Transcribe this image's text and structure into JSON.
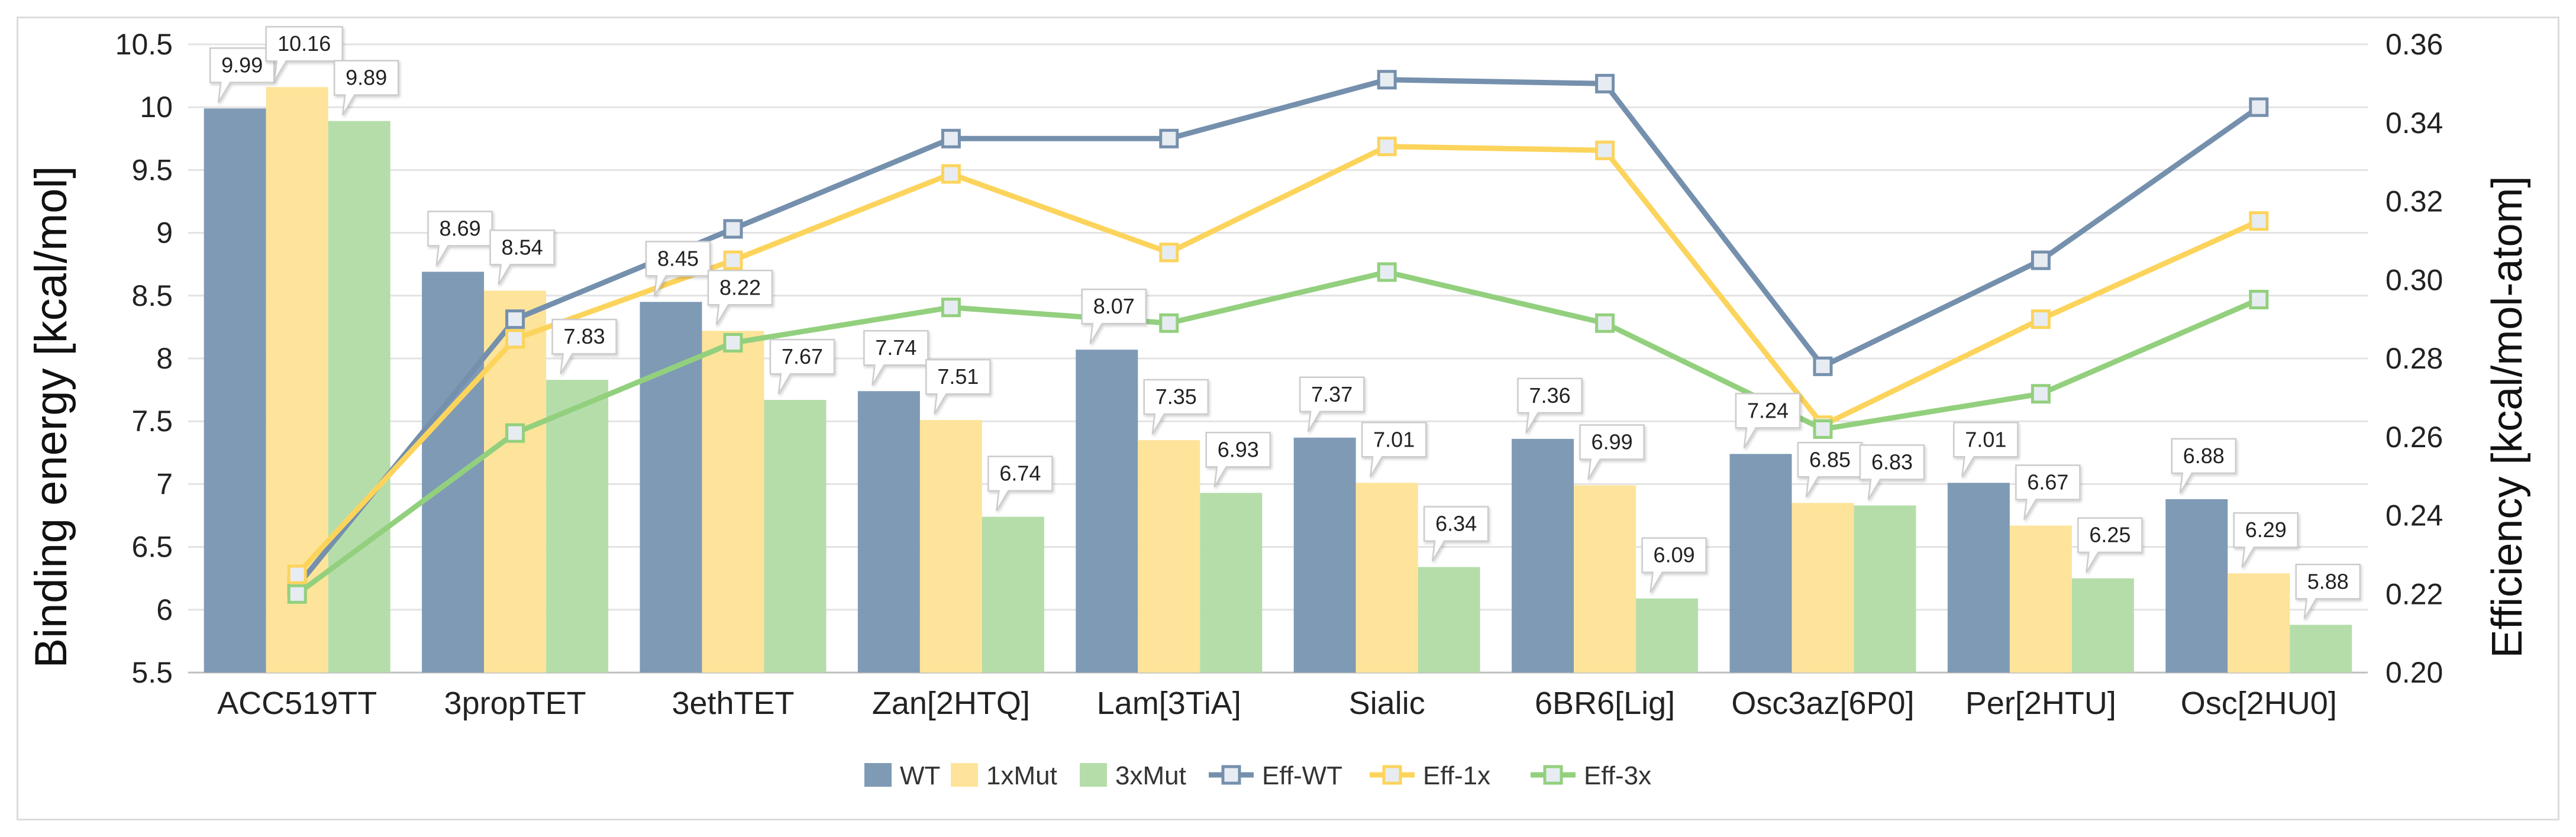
{
  "chart_data": {
    "type": "bar",
    "title": "",
    "categories": [
      "ACC519TT",
      "3propTET",
      "3ethTET",
      "Zan[2HTQ]",
      "Lam[3TiA]",
      "Sialic",
      "6BR6[Lig]",
      "Osc3az[6P0]",
      "Per[2HTU]",
      "Osc[2HU0]"
    ],
    "ylabel": "Binding energy [kcal/mol]",
    "y2label": "Efficiency [kcal/mol-atom]",
    "ylim": [
      5.5,
      10.5
    ],
    "y2lim": [
      0.2,
      0.36
    ],
    "yticks": [
      "5.5",
      "6",
      "6.5",
      "7",
      "7.5",
      "8",
      "8.5",
      "9",
      "9.5",
      "10",
      "10.5"
    ],
    "y2ticks": [
      "0.20",
      "0.22",
      "0.24",
      "0.26",
      "0.28",
      "0.30",
      "0.32",
      "0.34",
      "0.36"
    ],
    "grid": true,
    "legend_position": "bottom",
    "bar_series": [
      {
        "name": "WT",
        "color": "#7f9ab5",
        "values": [
          9.99,
          8.69,
          8.45,
          7.74,
          8.07,
          7.37,
          7.36,
          7.24,
          7.01,
          6.88
        ],
        "labels": [
          "9.99",
          "8.69",
          "8.45",
          "7.74",
          "8.07",
          "7.37",
          "7.36",
          "7.24",
          "7.01",
          "6.88"
        ]
      },
      {
        "name": "1xMut",
        "color": "#fde49a",
        "values": [
          10.16,
          8.54,
          8.22,
          7.51,
          7.35,
          7.01,
          6.99,
          6.85,
          6.67,
          6.29
        ],
        "labels": [
          "10.16",
          "8.54",
          "8.22",
          "7.51",
          "7.35",
          "7.01",
          "6.99",
          "6.85",
          "6.67",
          "6.29"
        ]
      },
      {
        "name": "3xMut",
        "color": "#b5ddaa",
        "values": [
          9.89,
          7.83,
          7.67,
          6.74,
          6.93,
          6.34,
          6.09,
          6.83,
          6.25,
          5.88
        ],
        "labels": [
          "9.89",
          "7.83",
          "7.67",
          "6.74",
          "6.93",
          "6.34",
          "6.09",
          "6.83",
          "6.25",
          "5.88"
        ]
      }
    ],
    "line_series": [
      {
        "name": "Eff-WT",
        "color": "#7590ad",
        "values": [
          0.222,
          0.29,
          0.313,
          0.336,
          0.336,
          0.351,
          0.35,
          0.278,
          0.305,
          0.344
        ]
      },
      {
        "name": "Eff-1x",
        "color": "#fcd45c",
        "values": [
          0.225,
          0.285,
          0.305,
          0.327,
          0.307,
          0.334,
          0.333,
          0.263,
          0.29,
          0.315
        ]
      },
      {
        "name": "Eff-3x",
        "color": "#93d07e",
        "values": [
          0.22,
          0.261,
          0.284,
          0.293,
          0.289,
          0.302,
          0.289,
          0.262,
          0.271,
          0.295
        ]
      }
    ]
  }
}
